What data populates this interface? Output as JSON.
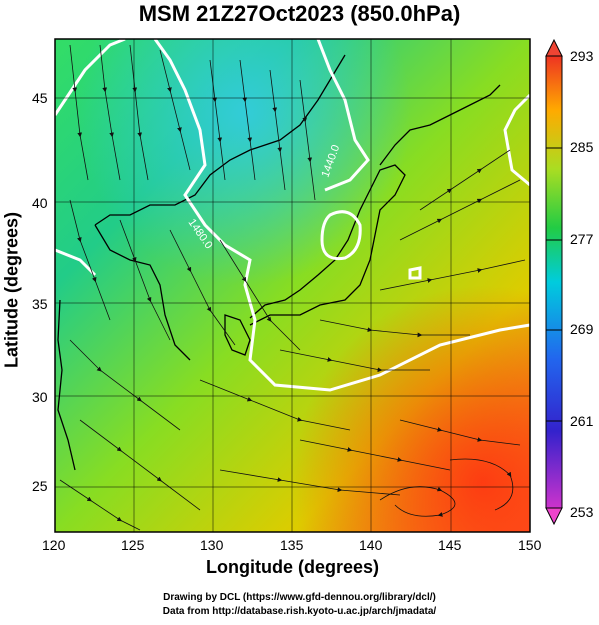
{
  "title": "MSM 21Z27Oct2023 (850.0hPa)",
  "x_axis": {
    "label": "Longitude (degrees)",
    "ticks": [
      "120",
      "125",
      "130",
      "135",
      "140",
      "145",
      "150"
    ],
    "range": [
      120,
      150
    ]
  },
  "y_axis": {
    "label": "Latitude  (degrees)",
    "ticks": [
      "25",
      "30",
      "35",
      "40",
      "45"
    ],
    "range": [
      22.4,
      47.6
    ]
  },
  "colorbar": {
    "ticks": [
      "293",
      "285",
      "277",
      "269",
      "261",
      "253"
    ],
    "range": [
      253,
      293
    ],
    "colors": [
      "#cc33cc",
      "#2222cc",
      "#00bbee",
      "#22cc44",
      "#aadd22",
      "#ffaa00",
      "#ee3322"
    ]
  },
  "contour_labels": [
    "1440.0",
    "1480.0"
  ],
  "footer": {
    "line1": "Drawing by DCL (https://www.gfd-dennou.org/library/dcl/)",
    "line2": "Data from http://database.rish.kyoto-u.ac.jp/arch/jmadata/"
  }
}
